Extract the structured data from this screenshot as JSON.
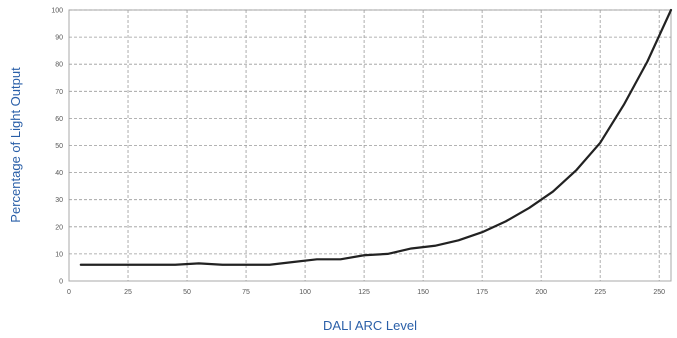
{
  "chart_data": {
    "type": "line",
    "xlabel": "DALI ARC Level",
    "ylabel": "Percentage of Light Output",
    "xlim": [
      0,
      255
    ],
    "ylim": [
      0,
      100
    ],
    "xticks": [
      0,
      25,
      50,
      75,
      100,
      125,
      150,
      175,
      200,
      225,
      250
    ],
    "yticks": [
      0,
      10,
      20,
      30,
      40,
      50,
      60,
      70,
      80,
      90,
      100
    ],
    "grid": true,
    "series": [
      {
        "color": "#222222",
        "points": [
          [
            5,
            6
          ],
          [
            15,
            6
          ],
          [
            25,
            6
          ],
          [
            35,
            6
          ],
          [
            45,
            6
          ],
          [
            55,
            6.5
          ],
          [
            65,
            6
          ],
          [
            75,
            6
          ],
          [
            85,
            6
          ],
          [
            95,
            7
          ],
          [
            105,
            8
          ],
          [
            115,
            8
          ],
          [
            125,
            9.5
          ],
          [
            135,
            10
          ],
          [
            145,
            12
          ],
          [
            155,
            13
          ],
          [
            165,
            15
          ],
          [
            175,
            18
          ],
          [
            185,
            22
          ],
          [
            195,
            27
          ],
          [
            205,
            33
          ],
          [
            215,
            41
          ],
          [
            225,
            51
          ],
          [
            235,
            65
          ],
          [
            245,
            81
          ],
          [
            255,
            100
          ]
        ]
      }
    ]
  }
}
